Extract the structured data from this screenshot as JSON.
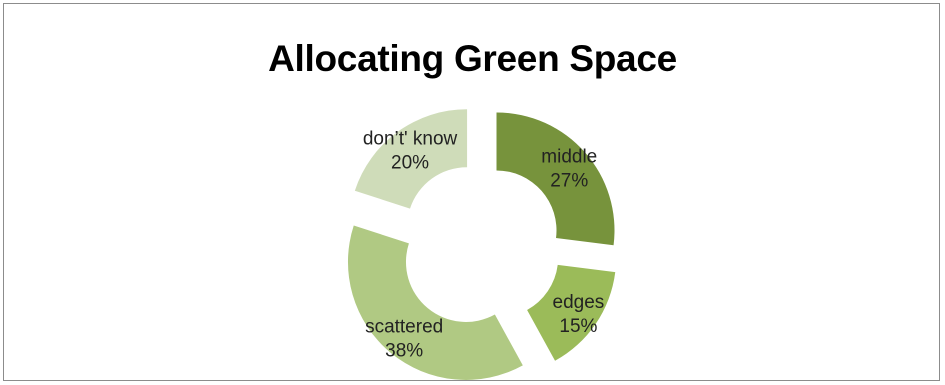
{
  "chart_data": {
    "type": "doughnut",
    "title": "Allocating Green Space",
    "categories": [
      "middle",
      "edges",
      "scattered",
      "don’t' know"
    ],
    "values": [
      27,
      15,
      38,
      20
    ],
    "value_labels": [
      "27%",
      "15%",
      "38%",
      "20%"
    ],
    "colors": [
      "#77933c",
      "#9bbb59",
      "#b0c983",
      "#cfdcb9"
    ],
    "legend": "none",
    "exploded": true,
    "start_angle_deg": 0,
    "direction": "clockwise"
  }
}
